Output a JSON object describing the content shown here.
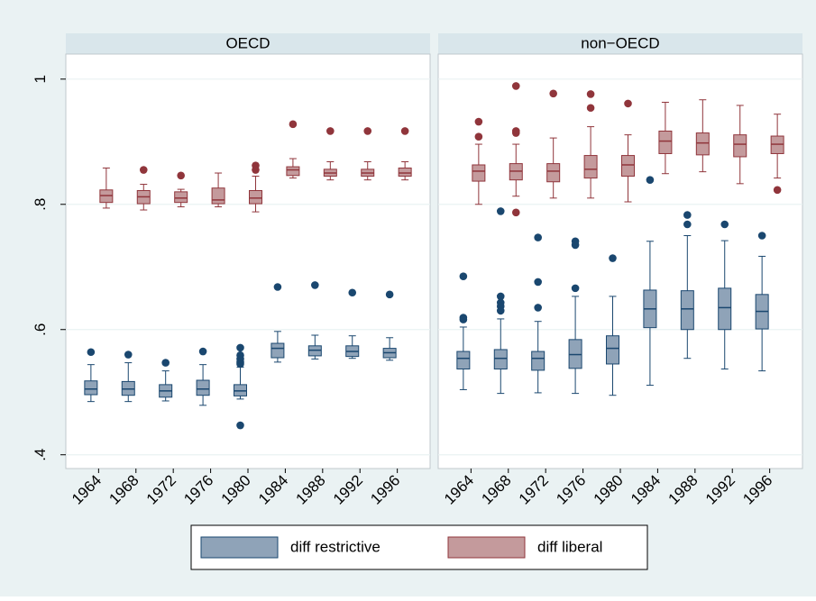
{
  "chart_data": [
    {
      "type": "box",
      "title": "OECD",
      "categories": [
        "1964",
        "1968",
        "1972",
        "1976",
        "1980",
        "1984",
        "1988",
        "1992",
        "1996"
      ],
      "ylim": [
        0.378,
        1.04
      ],
      "yticks": [
        {
          "value": 0.4,
          "label": ".4"
        },
        {
          "value": 0.6,
          "label": ".6"
        },
        {
          "value": 0.8,
          "label": ".8"
        },
        1
      ],
      "grid": true,
      "legend": "bottom",
      "series": [
        {
          "name": "diff restrictive",
          "color": "#8fa3b8",
          "edge": "#1a476f",
          "whisker_low": [
            0.485,
            0.485,
            0.486,
            0.479,
            0.489,
            0.548,
            0.553,
            0.554,
            0.551
          ],
          "q1": [
            0.496,
            0.495,
            0.492,
            0.495,
            0.494,
            0.555,
            0.558,
            0.557,
            0.555
          ],
          "median": [
            0.505,
            0.505,
            0.502,
            0.505,
            0.502,
            0.57,
            0.567,
            0.565,
            0.563
          ],
          "q3": [
            0.518,
            0.517,
            0.512,
            0.519,
            0.512,
            0.578,
            0.574,
            0.574,
            0.57
          ],
          "whisker_high": [
            0.544,
            0.547,
            0.534,
            0.544,
            0.54,
            0.597,
            0.591,
            0.59,
            0.587
          ],
          "outliers": [
            [
              0.564
            ],
            [
              0.56
            ],
            [
              0.547
            ],
            [
              0.565
            ],
            [
              0.571,
              0.559,
              0.553,
              0.548,
              0.545,
              0.447
            ],
            [
              0.668
            ],
            [
              0.671
            ],
            [
              0.659
            ],
            [
              0.656
            ]
          ]
        },
        {
          "name": "diff liberal",
          "color": "#c49a9c",
          "edge": "#90353b",
          "whisker_low": [
            0.794,
            0.791,
            0.796,
            0.796,
            0.788,
            0.842,
            0.839,
            0.839,
            0.839
          ],
          "q1": [
            0.803,
            0.801,
            0.803,
            0.801,
            0.801,
            0.846,
            0.845,
            0.845,
            0.845
          ],
          "median": [
            0.814,
            0.812,
            0.81,
            0.807,
            0.81,
            0.855,
            0.85,
            0.85,
            0.85
          ],
          "q3": [
            0.823,
            0.822,
            0.82,
            0.826,
            0.822,
            0.86,
            0.856,
            0.856,
            0.858
          ],
          "whisker_high": [
            0.858,
            0.832,
            0.824,
            0.85,
            0.845,
            0.873,
            0.868,
            0.868,
            0.868
          ],
          "outliers": [
            [],
            [
              0.855
            ],
            [
              0.846
            ],
            [],
            [
              0.862,
              0.855
            ],
            [
              0.928
            ],
            [
              0.917
            ],
            [
              0.917
            ],
            [
              0.917
            ]
          ]
        }
      ]
    },
    {
      "type": "box",
      "title": "non−OECD",
      "categories": [
        "1964",
        "1968",
        "1972",
        "1976",
        "1980",
        "1984",
        "1988",
        "1992",
        "1996"
      ],
      "ylim": [
        0.378,
        1.04
      ],
      "series": [
        {
          "color": "#8fa3b8",
          "edge": "#1a476f",
          "whisker_low": [
            0.504,
            0.498,
            0.499,
            0.498,
            0.495,
            0.511,
            0.554,
            0.537,
            0.534
          ],
          "q1": [
            0.537,
            0.537,
            0.535,
            0.538,
            0.545,
            0.603,
            0.6,
            0.6,
            0.601
          ],
          "median": [
            0.554,
            0.554,
            0.554,
            0.56,
            0.57,
            0.633,
            0.633,
            0.635,
            0.629
          ],
          "q3": [
            0.565,
            0.568,
            0.565,
            0.584,
            0.59,
            0.663,
            0.662,
            0.666,
            0.656
          ],
          "whisker_high": [
            0.604,
            0.617,
            0.613,
            0.653,
            0.653,
            0.741,
            0.75,
            0.742,
            0.717
          ],
          "outliers": [
            [
              0.685,
              0.619,
              0.616
            ],
            [
              0.789,
              0.653,
              0.643,
              0.637,
              0.63
            ],
            [
              0.747,
              0.676,
              0.635
            ],
            [
              0.741,
              0.735,
              0.666
            ],
            [
              0.714
            ],
            [
              0.839
            ],
            [
              0.783,
              0.768
            ],
            [
              0.768
            ],
            [
              0.75
            ]
          ]
        },
        {
          "color": "#c49a9c",
          "edge": "#90353b",
          "whisker_low": [
            0.8,
            0.813,
            0.81,
            0.81,
            0.804,
            0.849,
            0.852,
            0.833,
            0.842
          ],
          "q1": [
            0.837,
            0.839,
            0.836,
            0.842,
            0.845,
            0.881,
            0.879,
            0.876,
            0.881
          ],
          "median": [
            0.853,
            0.853,
            0.853,
            0.856,
            0.863,
            0.901,
            0.898,
            0.896,
            0.896
          ],
          "q3": [
            0.863,
            0.865,
            0.865,
            0.878,
            0.878,
            0.917,
            0.914,
            0.911,
            0.909
          ],
          "whisker_high": [
            0.896,
            0.896,
            0.906,
            0.924,
            0.911,
            0.963,
            0.967,
            0.958,
            0.944
          ],
          "outliers": [
            [
              0.932,
              0.908
            ],
            [
              0.989,
              0.917,
              0.914,
              0.787
            ],
            [
              0.977
            ],
            [
              0.976,
              0.954
            ],
            [
              0.961
            ],
            [],
            [],
            [],
            [
              0.823
            ]
          ]
        }
      ]
    }
  ]
}
